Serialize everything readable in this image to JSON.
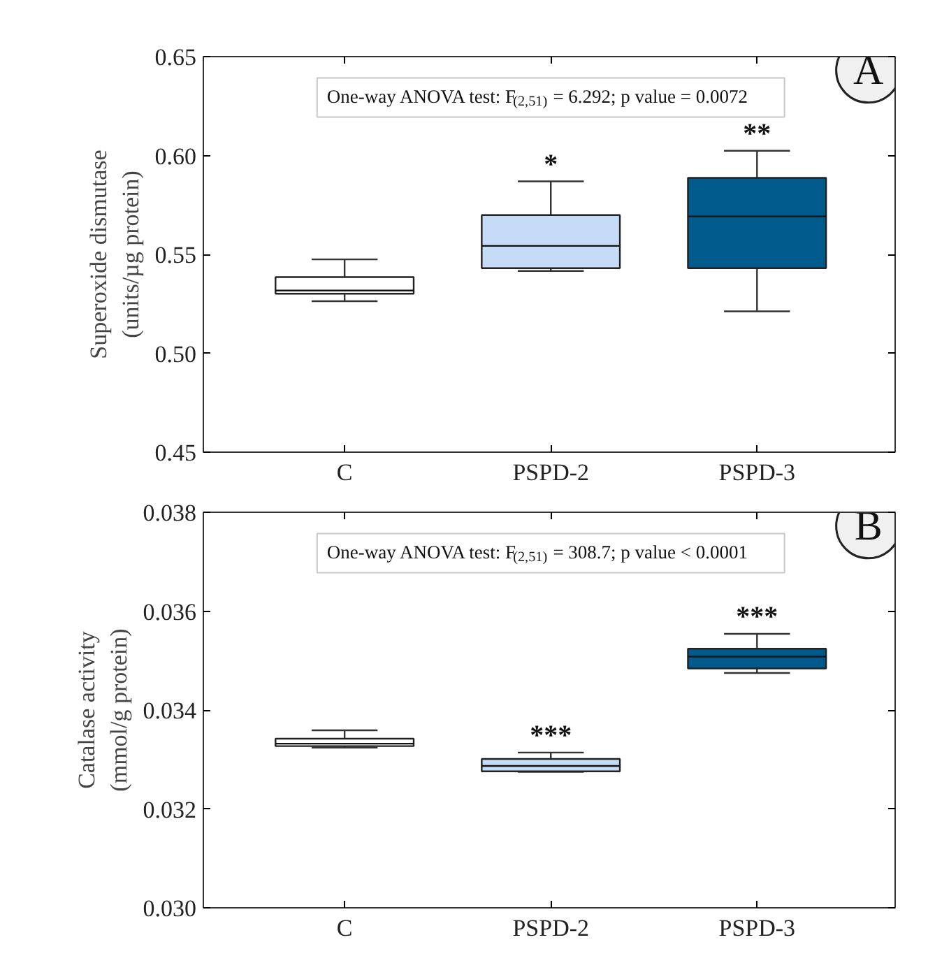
{
  "chart_data": [
    {
      "type": "box",
      "ylabel": "Superoxide dismutase\n(units/µg protein)",
      "categories": [
        "C",
        "PSPD-2",
        "PSPD-3"
      ],
      "colors": [
        "#ffffff",
        "#c6dbf5",
        "#005a8c"
      ],
      "boxes": [
        {
          "low": 0.5263,
          "q1": 0.5301,
          "median": 0.5317,
          "q3": 0.5385,
          "high": 0.5475
        },
        {
          "low": 0.5416,
          "q1": 0.543,
          "median": 0.5543,
          "q3": 0.5699,
          "high": 0.5869
        },
        {
          "low": 0.5212,
          "q1": 0.543,
          "median": 0.5692,
          "q3": 0.5887,
          "high": 0.6024
        }
      ],
      "ylim": [
        0.45,
        0.65
      ],
      "yticks": [
        {
          "value": 0.45,
          "label": "0.45"
        },
        {
          "value": 0.5,
          "label": "0.50"
        },
        {
          "value": 0.55,
          "label": "0.55"
        },
        {
          "value": 0.6,
          "label": "0.60"
        },
        {
          "value": 0.65,
          "label": "0.65"
        }
      ],
      "grid": false,
      "annotations": [
        "A",
        "One-way ANOVA test: F$_{(2,51)}$= 6.292; p value = 0.0072",
        {
          "text": "*",
          "x": "PSPD-2",
          "y": 0.5869
        },
        {
          "text": "**",
          "x": "PSPD-3",
          "y": 0.6024
        }
      ]
    },
    {
      "type": "box",
      "ylabel": "Catalase activity\n(mmol/g protein)",
      "categories": [
        "C",
        "PSPD-2",
        "PSPD-3"
      ],
      "colors": [
        "#ffffff",
        "#c6dbf5",
        "#005a8c"
      ],
      "boxes": [
        {
          "low": 0.03324,
          "q1": 0.03327,
          "median": 0.03332,
          "q3": 0.03342,
          "high": 0.03359
        },
        {
          "low": 0.03275,
          "q1": 0.03276,
          "median": 0.03287,
          "q3": 0.03301,
          "high": 0.03314
        },
        {
          "low": 0.03475,
          "q1": 0.03484,
          "median": 0.03508,
          "q3": 0.03524,
          "high": 0.03554
        }
      ],
      "ylim": [
        0.03,
        0.038
      ],
      "yticks": [
        {
          "value": 0.03,
          "label": "0.030"
        },
        {
          "value": 0.032,
          "label": "0.032"
        },
        {
          "value": 0.034,
          "label": "0.034"
        },
        {
          "value": 0.036,
          "label": "0.036"
        },
        {
          "value": 0.038,
          "label": "0.038"
        }
      ],
      "grid": false,
      "annotations": [
        "B",
        "One-way ANOVA test: F$_{(2,51)}$= 308.7; p value < 0.0001",
        {
          "text": "***",
          "x": "PSPD-2",
          "y": 0.03314
        },
        {
          "text": "***",
          "x": "PSPD-3",
          "y": 0.03554
        }
      ]
    }
  ]
}
